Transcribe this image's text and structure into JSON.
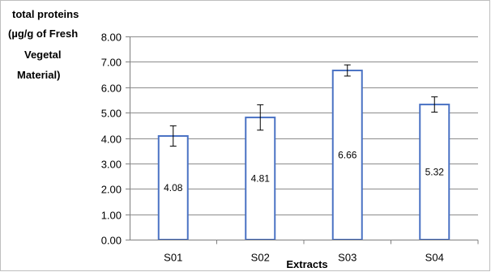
{
  "chart_data": {
    "type": "bar",
    "title": "",
    "ylabel_lines": [
      "total proteins",
      "(µg/g of Fresh",
      "Vegetal",
      "Material)"
    ],
    "xlabel": "Extracts",
    "categories": [
      "S01",
      "S02",
      "S03",
      "S04"
    ],
    "values": [
      4.08,
      4.81,
      6.66,
      5.32
    ],
    "data_labels": [
      "4.08",
      "4.81",
      "6.66",
      "5.32"
    ],
    "error_bars": [
      0.4,
      0.5,
      0.22,
      0.3
    ],
    "ylim": [
      0,
      8
    ],
    "yticks": [
      0,
      1,
      2,
      3,
      4,
      5,
      6,
      7,
      8
    ],
    "ytick_labels": [
      "0.00",
      "1.00",
      "2.00",
      "3.00",
      "4.00",
      "5.00",
      "6.00",
      "7.00",
      "8.00"
    ],
    "grid": true,
    "legend": "none",
    "colors": {
      "bar_fill": "#ffffff",
      "bar_stroke": "#4a72c4",
      "grid": "#8c8c8c",
      "axis": "#7f7f7f",
      "error_bar": "#000000",
      "frame": "#bfbfbf"
    }
  }
}
